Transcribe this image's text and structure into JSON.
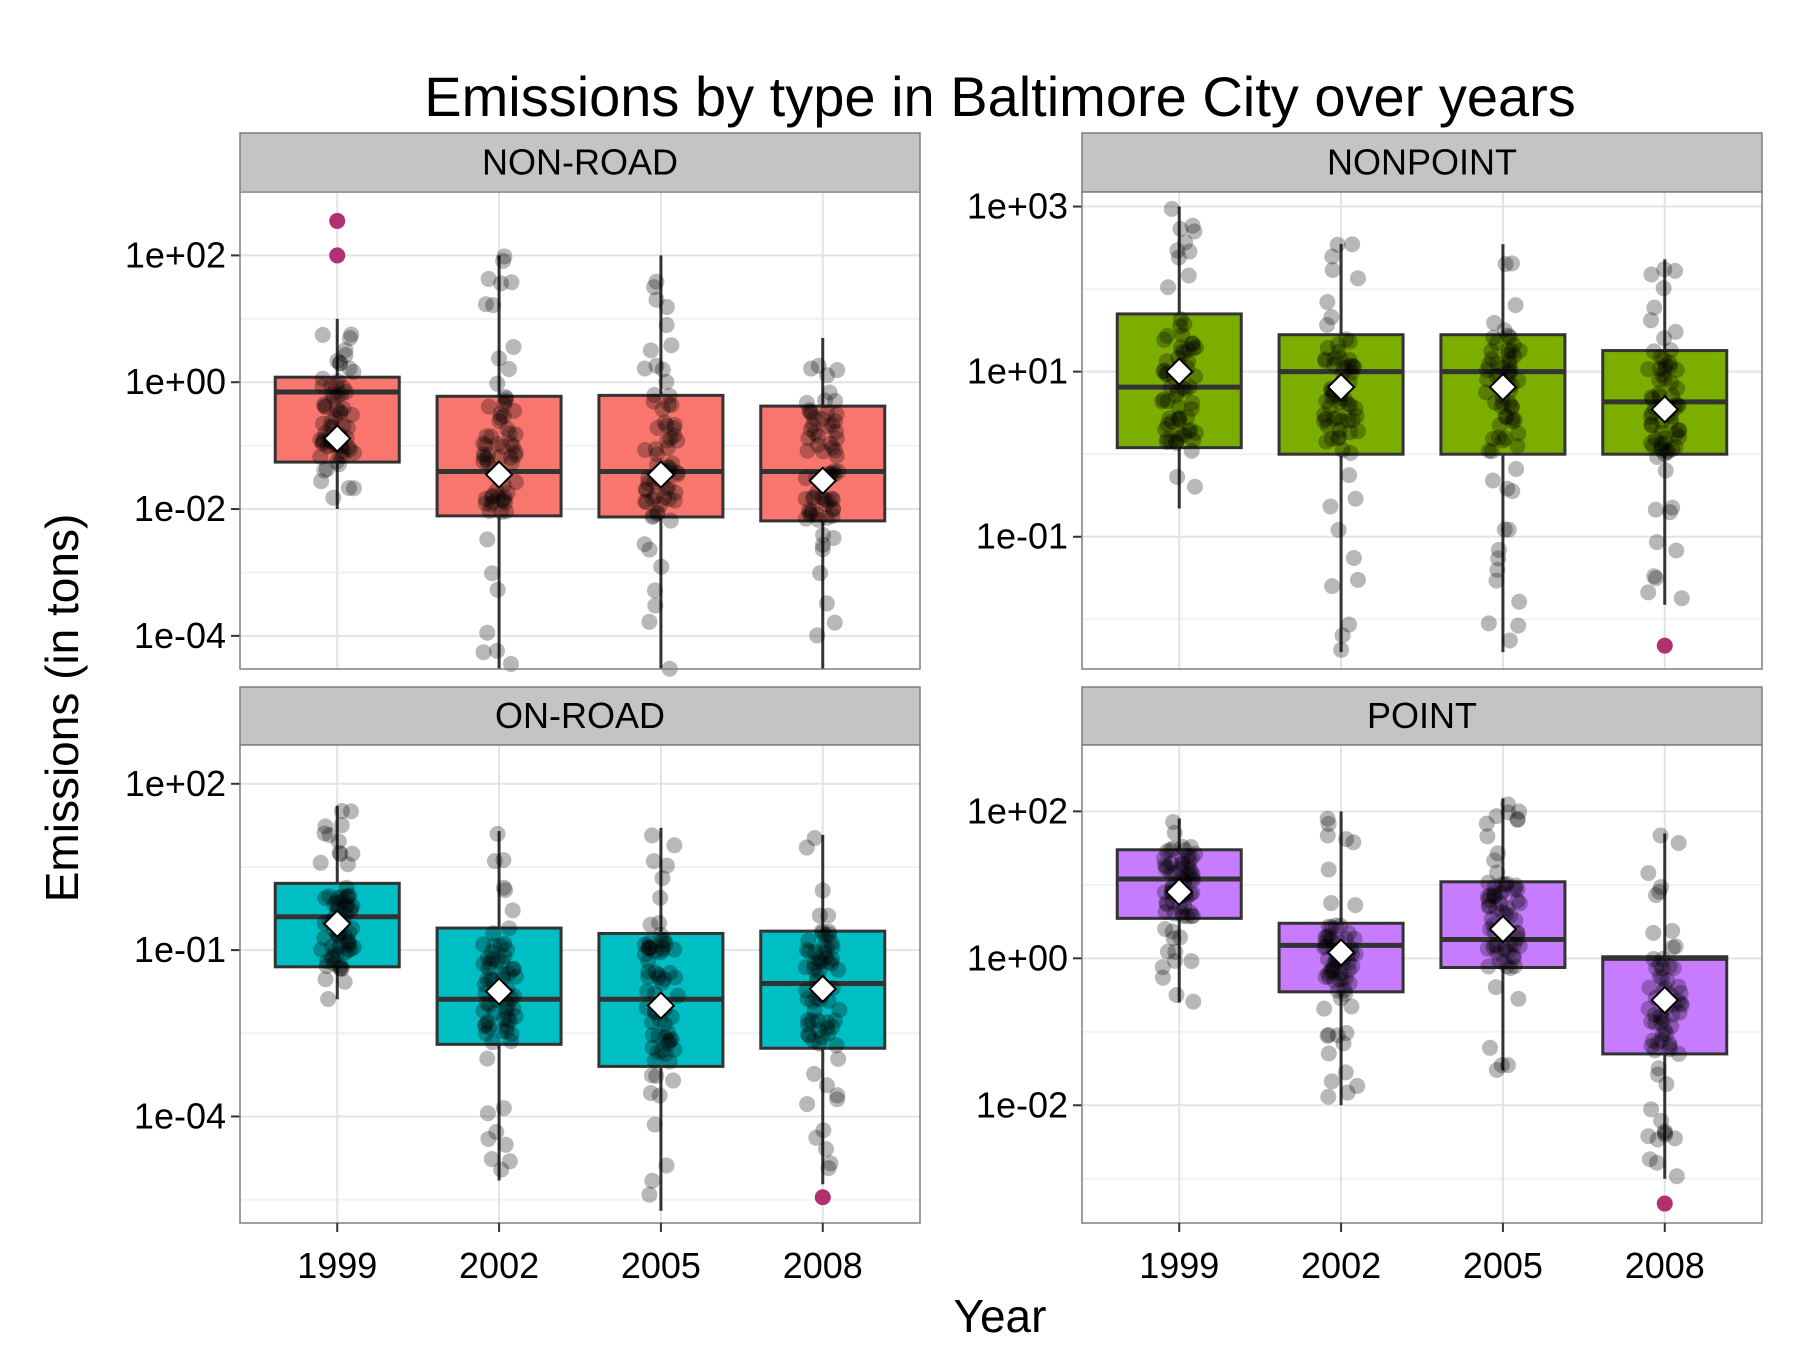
{
  "title": "Emissions by type in Baltimore City over years",
  "xlabel": "Year",
  "ylabel": "Emissions (in tons)",
  "chart_data": [
    {
      "type": "box",
      "panel": "NON-ROAD",
      "fill": "#F8766D",
      "yscale": "log10",
      "ylim": [
        3e-05,
        1000
      ],
      "yticks": [
        {
          "value": 0.0001,
          "label": "1e-04"
        },
        {
          "value": 0.01,
          "label": "1e-02"
        },
        {
          "value": 1,
          "label": "1e+00"
        },
        {
          "value": 100,
          "label": "1e+02"
        }
      ],
      "categories": [
        "1999",
        "2002",
        "2005",
        "2008"
      ],
      "boxes": [
        {
          "q1": 0.055,
          "median": 0.7,
          "q3": 1.2,
          "whisker_low": 0.01,
          "whisker_high": 10,
          "mean": 0.13
        },
        {
          "q1": 0.0078,
          "median": 0.039,
          "q3": 0.6,
          "whisker_low": 3e-05,
          "whisker_high": 100,
          "mean": 0.035
        },
        {
          "q1": 0.0075,
          "median": 0.039,
          "q3": 0.62,
          "whisker_low": 3e-05,
          "whisker_high": 100,
          "mean": 0.035
        },
        {
          "q1": 0.0065,
          "median": 0.039,
          "q3": 0.42,
          "whisker_low": 3e-05,
          "whisker_high": 5,
          "mean": 0.028
        }
      ],
      "outliers": [
        {
          "x": "1999",
          "y": 350
        },
        {
          "x": "1999",
          "y": 100
        }
      ]
    },
    {
      "type": "box",
      "panel": "NONPOINT",
      "fill": "#7CAE00",
      "yscale": "log10",
      "ylim": [
        0.0025,
        1500
      ],
      "yticks": [
        {
          "value": 0.1,
          "label": "1e-01"
        },
        {
          "value": 10,
          "label": "1e+01"
        },
        {
          "value": 1000,
          "label": "1e+03"
        }
      ],
      "categories": [
        "1999",
        "2002",
        "2005",
        "2008"
      ],
      "boxes": [
        {
          "q1": 1.2,
          "median": 6.5,
          "q3": 50,
          "whisker_low": 0.22,
          "whisker_high": 1000,
          "mean": 10
        },
        {
          "q1": 1.0,
          "median": 10,
          "q3": 28,
          "whisker_low": 0.004,
          "whisker_high": 350,
          "mean": 6.5
        },
        {
          "q1": 1.0,
          "median": 10,
          "q3": 28,
          "whisker_low": 0.004,
          "whisker_high": 350,
          "mean": 6.5
        },
        {
          "q1": 1.0,
          "median": 4.3,
          "q3": 18,
          "whisker_low": 0.015,
          "whisker_high": 230,
          "mean": 3.5
        }
      ],
      "outliers": [
        {
          "x": "2008",
          "y": 0.0048
        }
      ]
    },
    {
      "type": "box",
      "panel": "ON-ROAD",
      "fill": "#00BFC4",
      "yscale": "log10",
      "ylim": [
        1.2e-06,
        500
      ],
      "yticks": [
        {
          "value": 0.0001,
          "label": "1e-04"
        },
        {
          "value": 0.1,
          "label": "1e-01"
        },
        {
          "value": 100,
          "label": "1e+02"
        }
      ],
      "categories": [
        "1999",
        "2002",
        "2005",
        "2008"
      ],
      "boxes": [
        {
          "q1": 0.05,
          "median": 0.4,
          "q3": 1.6,
          "whisker_low": 0.013,
          "whisker_high": 40,
          "mean": 0.3
        },
        {
          "q1": 0.002,
          "median": 0.013,
          "q3": 0.25,
          "whisker_low": 7e-06,
          "whisker_high": 14,
          "mean": 0.018
        },
        {
          "q1": 0.0008,
          "median": 0.013,
          "q3": 0.2,
          "whisker_low": 2e-06,
          "whisker_high": 16,
          "mean": 0.01
        },
        {
          "q1": 0.0017,
          "median": 0.025,
          "q3": 0.22,
          "whisker_low": 6e-06,
          "whisker_high": 12,
          "mean": 0.02
        }
      ],
      "outliers": [
        {
          "x": "2008",
          "y": 3.5e-06
        }
      ]
    },
    {
      "type": "box",
      "panel": "POINT",
      "fill": "#C77CFF",
      "yscale": "log10",
      "ylim": [
        0.00025,
        800
      ],
      "yticks": [
        {
          "value": 0.01,
          "label": "1e-02"
        },
        {
          "value": 1,
          "label": "1e+00"
        },
        {
          "value": 100,
          "label": "1e+02"
        }
      ],
      "categories": [
        "1999",
        "2002",
        "2005",
        "2008"
      ],
      "boxes": [
        {
          "q1": 3.5,
          "median": 12,
          "q3": 30,
          "whisker_low": 0.25,
          "whisker_high": 80,
          "mean": 8
        },
        {
          "q1": 0.35,
          "median": 1.5,
          "q3": 3.0,
          "whisker_low": 0.01,
          "whisker_high": 100,
          "mean": 1.2
        },
        {
          "q1": 0.75,
          "median": 1.8,
          "q3": 11,
          "whisker_low": 0.03,
          "whisker_high": 150,
          "mean": 2.5
        },
        {
          "q1": 0.05,
          "median": 1.0,
          "q3": 1.05,
          "whisker_low": 0.001,
          "whisker_high": 50,
          "mean": 0.27
        }
      ],
      "outliers": [
        {
          "x": "2008",
          "y": 0.00046
        }
      ]
    }
  ]
}
